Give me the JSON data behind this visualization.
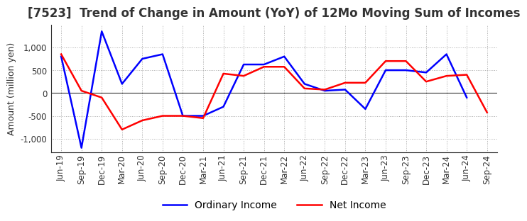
{
  "title": "[7523]  Trend of Change in Amount (YoY) of 12Mo Moving Sum of Incomes",
  "ylabel": "Amount (million yen)",
  "x_labels": [
    "Jun-19",
    "Sep-19",
    "Dec-19",
    "Mar-20",
    "Jun-20",
    "Sep-20",
    "Dec-20",
    "Mar-21",
    "Jun-21",
    "Sep-21",
    "Dec-21",
    "Mar-22",
    "Jun-22",
    "Sep-22",
    "Dec-22",
    "Mar-23",
    "Jun-23",
    "Sep-23",
    "Dec-23",
    "Mar-24",
    "Jun-24",
    "Sep-24"
  ],
  "ordinary_income": [
    800,
    -1200,
    1350,
    200,
    750,
    850,
    -500,
    -500,
    -300,
    625,
    625,
    800,
    200,
    50,
    75,
    -350,
    500,
    500,
    450,
    850,
    -100,
    null
  ],
  "net_income": [
    850,
    50,
    -100,
    -800,
    -600,
    -500,
    -500,
    -550,
    425,
    375,
    575,
    575,
    100,
    75,
    225,
    225,
    700,
    700,
    250,
    375,
    400,
    -425
  ],
  "ordinary_color": "#0000ff",
  "net_color": "#ff0000",
  "ylim": [
    -1300,
    1500
  ],
  "yticks": [
    -1000,
    -500,
    0,
    500,
    1000
  ],
  "background_color": "#ffffff",
  "grid_color": "#aaaaaa",
  "title_fontsize": 12,
  "label_fontsize": 9,
  "tick_fontsize": 8.5,
  "legend_fontsize": 10
}
